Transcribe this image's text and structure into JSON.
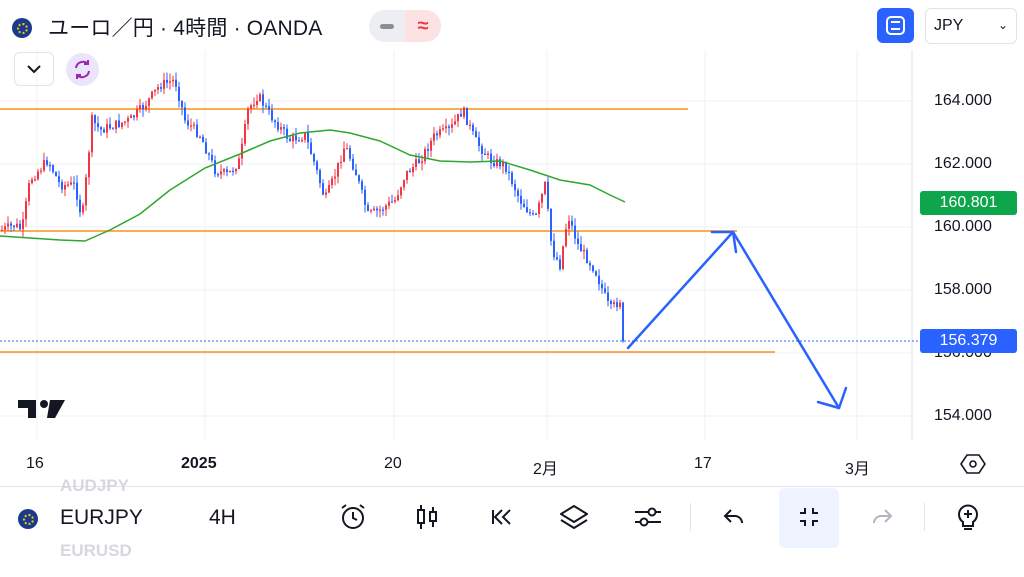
{
  "header": {
    "title": "ユーロ／円 · 4時間 · OANDA",
    "currency_select": "JPY"
  },
  "price_axis": {
    "labels": [
      "164.000",
      "162.000",
      "160.000",
      "158.000",
      "156.000",
      "154.000"
    ],
    "current_tag": "156.379",
    "ma_tag": "160.801",
    "current_tag_color": "#2962ff",
    "ma_tag_color": "#0fa54c"
  },
  "time_axis": {
    "labels": [
      "16",
      "2025",
      "20",
      "2月",
      "17",
      "3月"
    ]
  },
  "chart_data": {
    "type": "candlestick",
    "ylim": [
      152.8,
      167.5
    ],
    "horizontal_levels": [
      163.75,
      159.85,
      156.0
    ],
    "current_price": 156.379,
    "ma_last": 160.801,
    "up_color": "#f23645",
    "down_color": "#2962ff",
    "ma_color": "#2fa62f",
    "level_color": "#f7931a",
    "projection_color": "#2962ff"
  },
  "toolbar": {
    "symbol": "EURJPY",
    "interval": "4H",
    "ghost_above": "AUDJPY",
    "ghost_below": "EURUSD"
  },
  "icons": {
    "alert": "alarm-clock-icon",
    "chart_type": "candles-icon",
    "replay": "rewind-icon",
    "layers": "layers-icon",
    "indicators": "sliders-icon",
    "undo": "undo-icon",
    "fullscreen": "collapse-icon",
    "redo": "redo-icon",
    "ideas": "lightbulb-icon"
  }
}
